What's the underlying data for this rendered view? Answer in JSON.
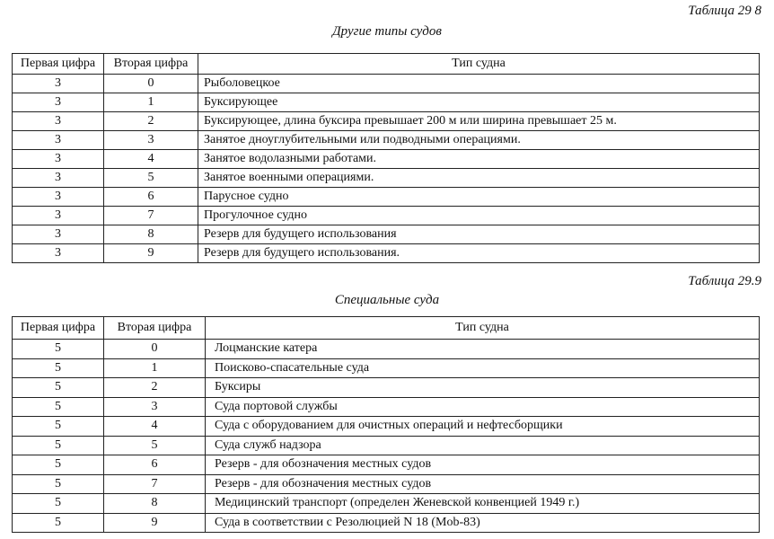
{
  "table1": {
    "number": "Таблица 29 8",
    "title": "Другие типы судов",
    "headers": [
      "Первая цифра",
      "Вторая цифра",
      "Тип судна"
    ],
    "rows": [
      [
        "3",
        "0",
        "Рыболовецкое"
      ],
      [
        "3",
        "1",
        "Буксирующее"
      ],
      [
        "3",
        "2",
        "Буксирующее, длина буксира превышает 200 м или ширина превышает 25 м."
      ],
      [
        "3",
        "3",
        "Занятое дноуглубительными или подводными операциями."
      ],
      [
        "3",
        "4",
        "Занятое водолазными работами."
      ],
      [
        "3",
        "5",
        "Занятое военными операциями."
      ],
      [
        "3",
        "6",
        "Парусное судно"
      ],
      [
        "3",
        "7",
        "Прогулочное судно"
      ],
      [
        "3",
        "8",
        "Резерв для будущего использования"
      ],
      [
        "3",
        "9",
        "Резерв для будущего использования."
      ]
    ]
  },
  "table2": {
    "number": "Таблица 29.9",
    "title": "Специальные суда",
    "headers": [
      "Первая цифра",
      "Вторая цифра",
      "Тип судна"
    ],
    "rows": [
      [
        "5",
        "0",
        "Лоцманские катера"
      ],
      [
        "5",
        "1",
        "Поисково-спасательные суда"
      ],
      [
        "5",
        "2",
        "Буксиры"
      ],
      [
        "5",
        "3",
        "Суда портовой службы"
      ],
      [
        "5",
        "4",
        "Суда с оборудованием для очистных операций и нефтесборщики"
      ],
      [
        "5",
        "5",
        "Суда служб надзора"
      ],
      [
        "5",
        "6",
        "Резерв - для обозначения местных судов"
      ],
      [
        "5",
        "7",
        "Резерв - для обозначения местных судов"
      ],
      [
        "5",
        "8",
        "Медицинский транспорт (определен Женевской конвенцией 1949 г.)"
      ],
      [
        "5",
        "9",
        "Суда в соответствии с Резолюцией N 18 (Mob-83)"
      ]
    ]
  }
}
